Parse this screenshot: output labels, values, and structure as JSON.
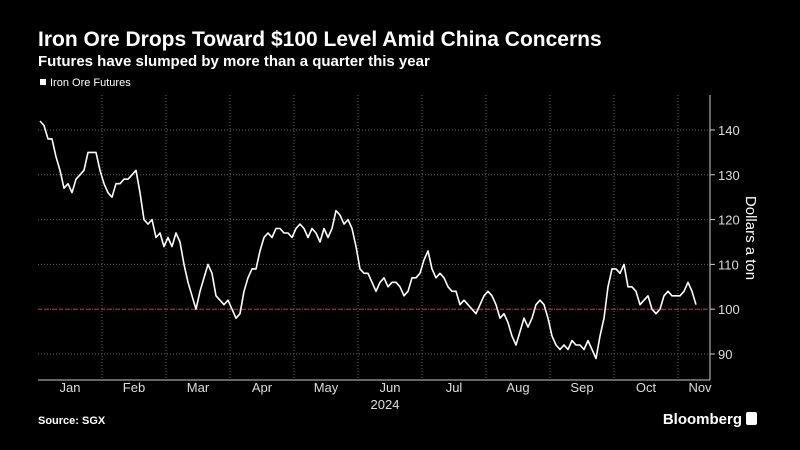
{
  "chart_data": {
    "type": "line",
    "title": "Iron Ore Drops Toward $100 Level Amid China Concerns",
    "subtitle": "Futures have slumped by more than a quarter this year",
    "ylabel": "Dollars a ton",
    "source": "Source: SGX",
    "brand": "Bloomberg",
    "xticks": [
      "Jan",
      "Feb",
      "Mar",
      "Apr",
      "May",
      "Jun",
      "Jul",
      "Aug",
      "Sep",
      "Oct",
      "Nov"
    ],
    "xlabel": "2024",
    "ylim": [
      84.2,
      147.8
    ],
    "yticks": [
      90,
      100,
      110,
      120,
      130,
      140
    ],
    "reference_line": 100,
    "reference_color": "#c0333a",
    "grid": true,
    "legend": "top-left",
    "series": [
      {
        "name": "Iron Ore Futures",
        "color": "#ffffff",
        "values": [
          142,
          141,
          138,
          138,
          134,
          131,
          127,
          128,
          126,
          129,
          130,
          131,
          135,
          135,
          135,
          131,
          128,
          126,
          125,
          128,
          128,
          129,
          129,
          130,
          131,
          126,
          120,
          119,
          120,
          116,
          117,
          114,
          116,
          114,
          117,
          115,
          110,
          106,
          103,
          100,
          104,
          107,
          110,
          108,
          103,
          102,
          101,
          102,
          100,
          98,
          99,
          104,
          107,
          109,
          109,
          113,
          116,
          117,
          116,
          118,
          118,
          117,
          117,
          116,
          118,
          119,
          118,
          116,
          118,
          117,
          115,
          118,
          116,
          118,
          122,
          121,
          119,
          120,
          118,
          114,
          109,
          108,
          108,
          106,
          104,
          106,
          107,
          105,
          106,
          106,
          105,
          103,
          104,
          107,
          107,
          108,
          111,
          113,
          109,
          107,
          108,
          107,
          105,
          104,
          104,
          101,
          102,
          101,
          100,
          99,
          101,
          103,
          104,
          103,
          101,
          98,
          99,
          97,
          94,
          92,
          95,
          98,
          96,
          98,
          101,
          102,
          101,
          98,
          94,
          92,
          91,
          92,
          91,
          93,
          92,
          92,
          91,
          93,
          91,
          89,
          94,
          98,
          105,
          109,
          109,
          108,
          110,
          105,
          105,
          104,
          101,
          102,
          103,
          100,
          99,
          100,
          103,
          104,
          103,
          103,
          103,
          104,
          106,
          104,
          101
        ]
      }
    ]
  }
}
